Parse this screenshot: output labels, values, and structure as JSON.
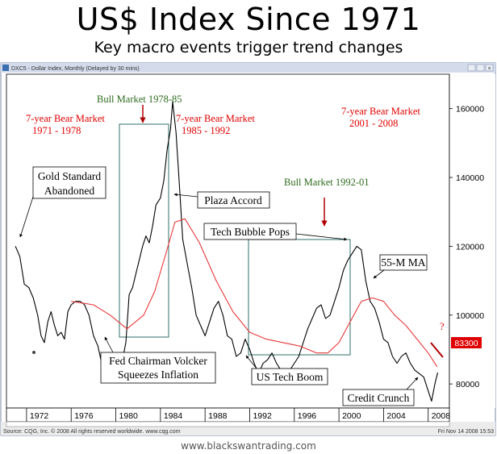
{
  "header": {
    "title": "US$ Index Since 1971",
    "subtitle": "Key macro events trigger trend changes",
    "footer": "www.blackswantrading.com"
  },
  "window": {
    "title": "DXC5 - Dollar Index, Monthly (Delayed by 30 mins)",
    "source": "Source: CQG, Inc. © 2008 All rights reserved worldwide. www.cqg.com",
    "timestamp": "Fri Nov 14 2008 15:53"
  },
  "colors": {
    "price_line": "#000000",
    "ma_line": "#e8383a",
    "box": "#2f6f6a",
    "bear_text": "#e00000",
    "bull_text": "#2e6b1e",
    "price_label_bg": "#e00000"
  },
  "annotations": {
    "bear_1971": [
      "7-year Bear Market",
      "1971 - 1978"
    ],
    "bear_1985": [
      "7-year Bear Market",
      "1985 - 1992"
    ],
    "bear_2001": [
      "7-year Bear Market",
      "2001 - 2008"
    ],
    "bull_1978": "Bull Market 1978-85",
    "bull_1992": "Bull Market 1992-01",
    "gold": [
      "Gold Standard",
      "Abandoned"
    ],
    "plaza": "Plaza Accord",
    "tech_pops": "Tech Bubble Pops",
    "ma": "55-M MA",
    "volcker": [
      "Fed Chairman Volcker",
      "Squeezes Inflation"
    ],
    "tech_boom": "US Tech Boom",
    "credit": "Credit Crunch",
    "question": "?"
  },
  "chart_data": {
    "type": "line",
    "title": "US$ Index Since 1971",
    "xlabel": "",
    "ylabel": "",
    "x_ticks": [
      "1972",
      "1976",
      "1980",
      "1984",
      "1988",
      "1992",
      "1996",
      "2000",
      "2004",
      "2008"
    ],
    "y_ticks": [
      "80000",
      "100000",
      "120000",
      "140000",
      "160000"
    ],
    "xlim": [
      1970.2,
      2009.9
    ],
    "ylim": [
      73000,
      170000
    ],
    "last_price_label": "83300",
    "series": [
      {
        "name": "Dollar Index (monthly)",
        "x": [
          1971.0,
          1971.4,
          1971.8,
          1972.2,
          1972.6,
          1973.0,
          1973.3,
          1973.6,
          1973.9,
          1974.2,
          1974.5,
          1974.8,
          1975.1,
          1975.4,
          1975.7,
          1976.0,
          1976.4,
          1976.8,
          1977.2,
          1977.6,
          1978.0,
          1978.4,
          1978.8,
          1979.1,
          1979.5,
          1979.9,
          1980.3,
          1980.6,
          1980.9,
          1981.2,
          1981.5,
          1981.8,
          1982.1,
          1982.4,
          1982.7,
          1983.0,
          1983.3,
          1983.6,
          1984.0,
          1984.3,
          1984.6,
          1984.9,
          1985.1,
          1985.4,
          1985.7,
          1986.0,
          1986.4,
          1986.8,
          1987.2,
          1987.6,
          1988.0,
          1988.4,
          1988.8,
          1989.2,
          1989.6,
          1990.0,
          1990.4,
          1990.8,
          1991.2,
          1991.6,
          1992.0,
          1992.4,
          1992.8,
          1993.2,
          1993.6,
          1994.0,
          1994.4,
          1994.8,
          1995.2,
          1995.6,
          1996.0,
          1996.4,
          1996.8,
          1997.2,
          1997.6,
          1998.0,
          1998.4,
          1998.8,
          1999.2,
          1999.6,
          2000.0,
          2000.4,
          2000.8,
          2001.2,
          2001.6,
          2002.0,
          2002.4,
          2002.8,
          2003.2,
          2003.6,
          2004.0,
          2004.4,
          2004.8,
          2005.2,
          2005.6,
          2006.0,
          2006.4,
          2006.8,
          2007.2,
          2007.6,
          2008.0,
          2008.3,
          2008.6,
          2008.85
        ],
        "values": [
          120000,
          117000,
          109000,
          108000,
          105000,
          100000,
          94000,
          92000,
          98000,
          101000,
          97000,
          94000,
          95000,
          93000,
          101000,
          103000,
          104000,
          104000,
          103000,
          100000,
          94000,
          91000,
          85000,
          87000,
          88000,
          86000,
          86000,
          87000,
          92000,
          106000,
          108000,
          112000,
          116000,
          120000,
          123000,
          121000,
          126000,
          132000,
          134000,
          139000,
          148000,
          154000,
          162000,
          153000,
          138000,
          122000,
          115000,
          108000,
          100000,
          97000,
          94000,
          98000,
          102000,
          104000,
          100000,
          94000,
          93000,
          88000,
          89000,
          93000,
          90000,
          86000,
          83000,
          86000,
          87000,
          89000,
          86000,
          84000,
          82000,
          84000,
          86000,
          88000,
          92000,
          96000,
          99000,
          102000,
          103000,
          99000,
          100000,
          104000,
          108000,
          113000,
          116000,
          118000,
          120000,
          119000,
          110000,
          104000,
          102000,
          98000,
          93000,
          92000,
          88000,
          86000,
          88000,
          89000,
          86000,
          84000,
          83000,
          82000,
          78000,
          75000,
          80000,
          83300
        ]
      },
      {
        "name": "55-M MA",
        "x": [
          1976.0,
          1978.0,
          1979.5,
          1981.0,
          1982.5,
          1983.5,
          1984.5,
          1985.3,
          1986.2,
          1987.5,
          1989.0,
          1990.5,
          1992.0,
          1993.5,
          1995.0,
          1996.5,
          1998.0,
          1999.0,
          2000.0,
          2001.0,
          2002.0,
          2003.0,
          2004.0,
          2005.0,
          2006.0,
          2007.0,
          2008.0,
          2008.8
        ],
        "values": [
          104000,
          103000,
          100000,
          96000,
          100000,
          107000,
          118000,
          127000,
          128000,
          121000,
          110000,
          101000,
          95000,
          93000,
          92000,
          91000,
          89000,
          89000,
          92000,
          98000,
          104000,
          105000,
          104000,
          100000,
          97000,
          93000,
          89000,
          85000
        ]
      }
    ]
  }
}
